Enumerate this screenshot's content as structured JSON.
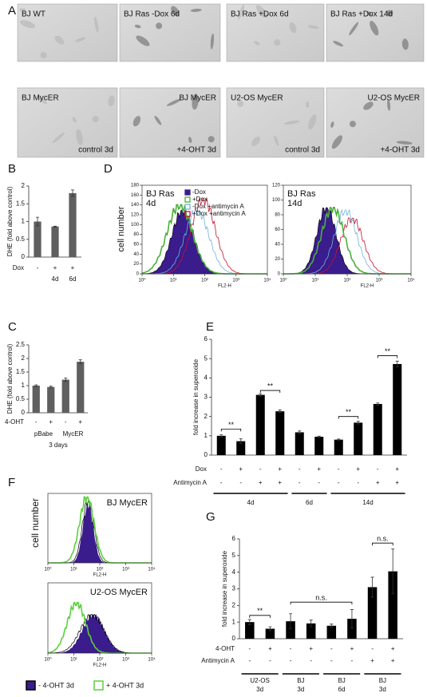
{
  "panel_labels": [
    "A",
    "B",
    "C",
    "D",
    "E",
    "F",
    "G"
  ],
  "panel_a": {
    "tiles": [
      {
        "top": "BJ WT"
      },
      {
        "top": "BJ Ras -Dox 6d"
      },
      {
        "top": "BJ Ras +Dox 6d"
      },
      {
        "top": "BJ Ras +Dox 14d"
      },
      {
        "top": "BJ MycER",
        "bottom": "control 3d"
      },
      {
        "top": "BJ MycER",
        "bottom": "+4-OHT 3d"
      },
      {
        "top": "U2-OS MycER",
        "bottom": "control 3d"
      },
      {
        "top": "U2-OS MycER",
        "bottom": "+4-OHT 3d"
      }
    ]
  },
  "panel_d": {
    "y_label": "cell number",
    "x_label": "FL2-H",
    "xscale": "log",
    "xlim": [
      1,
      10000
    ],
    "xticks": [
      {
        "value": 1,
        "label": "10⁰"
      },
      {
        "value": 10,
        "label": "10¹"
      },
      {
        "value": 100,
        "label": "10²"
      },
      {
        "value": 1000,
        "label": "10³"
      },
      {
        "value": 10000,
        "label": "10⁴"
      }
    ],
    "legend": [
      {
        "name": "-Dox",
        "color": "#3a1c8c"
      },
      {
        "name": "+Dox",
        "color": "#4caf3a"
      },
      {
        "name": "-Dox +antimycin A",
        "color": "#6fb3d9"
      },
      {
        "name": "+Dox +antimycin A",
        "color": "#c8102e"
      }
    ],
    "plots": [
      {
        "title": [
          "BJ Ras",
          "4d"
        ],
        "ylim": [
          0,
          180
        ],
        "yticks": [
          0,
          20,
          40,
          60,
          80,
          100,
          120,
          140,
          160,
          180
        ]
      },
      {
        "title": [
          "BJ Ras",
          "14d"
        ],
        "ylim": [
          0,
          120
        ],
        "yticks": [
          0,
          20,
          40,
          60,
          80,
          100,
          120
        ]
      }
    ]
  },
  "panel_f": {
    "y_label": "cell number",
    "x_label": "FL2-H",
    "xscale": "log",
    "xlim": [
      1,
      10000
    ],
    "xticks": [
      {
        "value": 1,
        "label": "10⁰"
      },
      {
        "value": 10,
        "label": "10¹"
      },
      {
        "value": 100,
        "label": "10²"
      },
      {
        "value": 1000,
        "label": "10³"
      },
      {
        "value": 10000,
        "label": "10⁴"
      }
    ],
    "titles": [
      "BJ MycER",
      "U2-OS MycER"
    ],
    "legend": [
      {
        "name": "- 4-OHT 3d",
        "color": "#3a1c8c"
      },
      {
        "name": "+ 4-OHT 3d",
        "color": "#5ad13a"
      }
    ]
  },
  "chart_data": [
    {
      "type": "bar",
      "y_label": "DHE (fold above control)",
      "color": "#5f5f5f",
      "values": [
        1.0,
        0.86,
        1.8
      ],
      "errors": [
        0.12,
        0.01,
        0.09
      ],
      "ylim": [
        0,
        2
      ],
      "yticks": [
        0,
        0.5,
        1,
        1.5,
        2
      ],
      "rows": [
        {
          "label": "Dox",
          "values": [
            "-",
            "+",
            "+"
          ]
        },
        {
          "values": [
            null,
            "4d",
            "6d"
          ]
        }
      ]
    },
    {
      "type": "bar",
      "y_label": "DHE (fold above control)",
      "color": "#5f5f5f",
      "values": [
        1.0,
        0.95,
        1.22,
        1.88
      ],
      "errors": [
        0.03,
        0.03,
        0.06,
        0.07
      ],
      "ylim": [
        0,
        2.5
      ],
      "yticks": [
        0,
        0.5,
        1,
        1.5,
        2,
        2.5
      ],
      "rows": [
        {
          "label": "4-OHT",
          "values": [
            "-",
            "+",
            "-",
            "+"
          ]
        }
      ],
      "groups": [
        [
          "pBabe"
        ],
        [
          "MycER"
        ]
      ],
      "note": "3 days"
    },
    {
      "type": "bar",
      "y_label": "fold increase in superoxide",
      "color": "#000000",
      "values": [
        1.0,
        0.72,
        3.12,
        2.27,
        1.18,
        0.95,
        0.8,
        1.68,
        2.65,
        4.72
      ],
      "errors": [
        0.05,
        0.12,
        0.06,
        0.07,
        0.07,
        0.03,
        0.03,
        0.07,
        0.05,
        0.15
      ],
      "ylim": [
        0,
        6
      ],
      "yticks": [
        0,
        1,
        2,
        3,
        4,
        5,
        6
      ],
      "rows": [
        {
          "label": "Dox",
          "values": [
            "-",
            "+",
            "-",
            "+",
            "-",
            "+",
            "-",
            "+",
            "-",
            "+"
          ]
        },
        {
          "label": "Antimycin A",
          "values": [
            "-",
            "-",
            "+",
            "+",
            "-",
            "-",
            "-",
            "-",
            "+",
            "+"
          ]
        }
      ],
      "groups": [
        [
          "4d"
        ],
        [
          "6d"
        ],
        [
          "14d"
        ]
      ],
      "annotations": [
        "**",
        "**",
        "**",
        "**"
      ]
    },
    {
      "type": "bar",
      "y_label": "fold increase in superoxide",
      "color": "#000000",
      "values": [
        1.0,
        0.6,
        1.05,
        0.92,
        0.78,
        1.2,
        3.1,
        4.05
      ],
      "errors": [
        0.15,
        0.12,
        0.45,
        0.2,
        0.1,
        0.55,
        0.6,
        1.35
      ],
      "ylim": [
        0,
        6
      ],
      "yticks": [
        0,
        1,
        2,
        3,
        4,
        5,
        6
      ],
      "rows": [
        {
          "label": "4-OHT",
          "values": [
            "-",
            "+",
            "-",
            "+",
            "-",
            "+",
            "-",
            "+"
          ]
        },
        {
          "label": "Antimycin A",
          "values": [
            "-",
            "-",
            "-",
            "-",
            "-",
            "-",
            "+",
            "+"
          ]
        }
      ],
      "groups": [
        [
          "U2-OS",
          "3d"
        ],
        [
          "BJ",
          "3d"
        ],
        [
          "BJ",
          "6d"
        ],
        [
          "BJ",
          "3d"
        ]
      ],
      "annotations": [
        "**",
        "n.s.",
        "n.s."
      ]
    }
  ]
}
